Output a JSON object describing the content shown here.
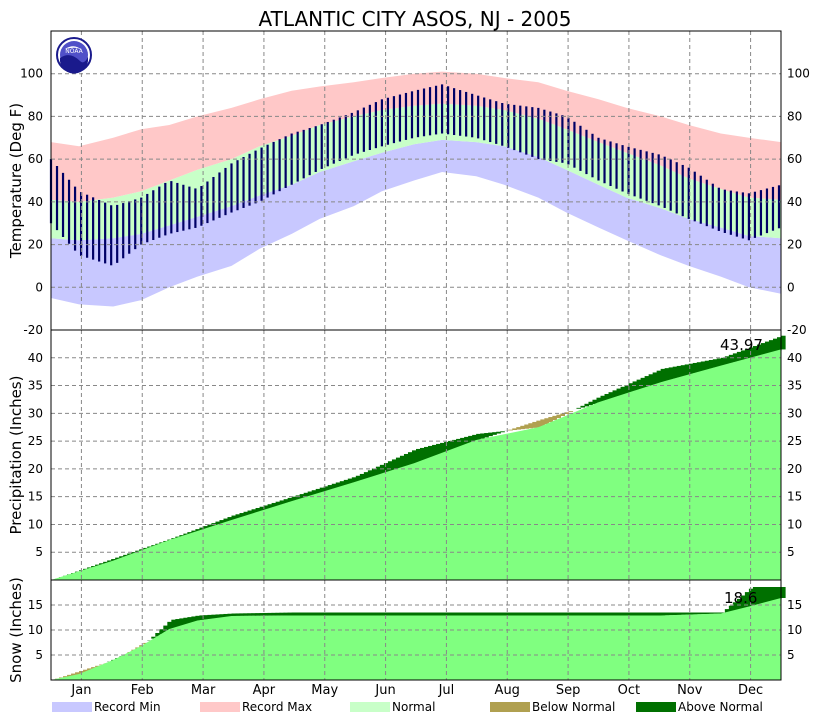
{
  "title": "ATLANTIC CITY  ASOS, NJ - 2005",
  "logo_text": "NOAA",
  "colors": {
    "record_min": "#c8c8ff",
    "record_max": "#ffc8c8",
    "normal": "#c8ffc8",
    "observed": "#000066",
    "below_normal": "#b0a050",
    "above_normal": "#007000",
    "normal_fill": "#80ff80",
    "grid": "#888888"
  },
  "legend": [
    {
      "label": "Record Min",
      "color_key": "record_min"
    },
    {
      "label": "Record Max",
      "color_key": "record_max"
    },
    {
      "label": "Normal",
      "color_key": "normal"
    },
    {
      "label": "Below Normal",
      "color_key": "below_normal"
    },
    {
      "label": "Above Normal",
      "color_key": "above_normal"
    }
  ],
  "chart_data": [
    {
      "type": "area",
      "panel": "temperature",
      "ylabel": "Temperature (Deg F)",
      "ylim": [
        -20,
        120
      ],
      "yticks": [
        -20,
        0,
        20,
        40,
        60,
        80,
        100
      ],
      "grid": true,
      "months": [
        "Jan",
        "Feb",
        "Mar",
        "Apr",
        "May",
        "Jun",
        "Jul",
        "Aug",
        "Sep",
        "Oct",
        "Nov",
        "Dec"
      ],
      "x_day_of_year": [
        1,
        15,
        32,
        46,
        60,
        74,
        91,
        105,
        121,
        135,
        152,
        166,
        182,
        196,
        213,
        227,
        244,
        258,
        274,
        288,
        305,
        319,
        335,
        349,
        365
      ],
      "record_max": [
        68,
        66,
        70,
        74,
        76,
        80,
        84,
        88,
        92,
        94,
        96,
        98,
        100,
        101,
        100,
        98,
        96,
        92,
        88,
        84,
        80,
        76,
        72,
        70,
        68
      ],
      "normal_high": [
        41,
        40,
        42,
        45,
        50,
        55,
        60,
        66,
        71,
        76,
        80,
        83,
        85,
        86,
        85,
        83,
        79,
        74,
        68,
        63,
        57,
        51,
        46,
        42,
        41
      ],
      "normal_low": [
        23,
        22,
        23,
        25,
        29,
        33,
        38,
        43,
        48,
        54,
        59,
        63,
        67,
        69,
        68,
        66,
        61,
        55,
        48,
        42,
        37,
        32,
        28,
        24,
        23
      ],
      "record_min": [
        -5,
        -8,
        -9,
        -6,
        0,
        5,
        10,
        18,
        25,
        32,
        38,
        45,
        50,
        54,
        52,
        48,
        42,
        35,
        28,
        22,
        15,
        10,
        5,
        0,
        -3
      ],
      "observed_high": [
        60,
        45,
        38,
        42,
        50,
        46,
        58,
        65,
        72,
        76,
        82,
        88,
        92,
        95,
        90,
        86,
        84,
        80,
        70,
        66,
        62,
        56,
        46,
        44,
        48
      ],
      "observed_low": [
        30,
        15,
        10,
        20,
        25,
        28,
        35,
        40,
        48,
        55,
        62,
        66,
        70,
        72,
        70,
        66,
        60,
        58,
        50,
        44,
        38,
        32,
        26,
        22,
        28
      ]
    },
    {
      "type": "area",
      "panel": "precipitation",
      "ylabel": "Precipitation (Inches)",
      "ylim": [
        0,
        45
      ],
      "yticks": [
        5,
        10,
        15,
        20,
        25,
        30,
        35,
        40
      ],
      "grid": true,
      "annotation": "43.97",
      "x_day_of_year": [
        1,
        32,
        60,
        91,
        121,
        152,
        182,
        213,
        244,
        274,
        305,
        335,
        365
      ],
      "normal_cumulative": [
        0,
        3.5,
        7.2,
        10.8,
        14.2,
        17.6,
        21.0,
        25.2,
        28.8,
        32.0,
        35.6,
        38.6,
        41.5
      ],
      "observed_cumulative": [
        0,
        3.9,
        7.4,
        11.6,
        15.0,
        18.6,
        23.5,
        26.3,
        27.5,
        33.0,
        38.0,
        40.0,
        43.97
      ]
    },
    {
      "type": "area",
      "panel": "snow",
      "ylabel": "Snow (Inches)",
      "ylim": [
        0,
        20
      ],
      "yticks": [
        5,
        10,
        15
      ],
      "grid": true,
      "annotation": "18.6",
      "x_day_of_year": [
        1,
        15,
        32,
        46,
        60,
        74,
        91,
        121,
        152,
        182,
        213,
        244,
        274,
        305,
        335,
        350,
        365
      ],
      "normal_cumulative": [
        0,
        1.8,
        4.0,
        7.2,
        10.2,
        11.9,
        12.8,
        12.9,
        12.9,
        12.9,
        12.9,
        12.9,
        12.9,
        12.9,
        13.3,
        14.8,
        16.4
      ],
      "observed_cumulative": [
        0,
        1.2,
        4.2,
        6.8,
        12.0,
        12.9,
        13.3,
        13.5,
        13.5,
        13.5,
        13.5,
        13.5,
        13.5,
        13.5,
        13.5,
        18.6,
        18.6
      ]
    }
  ]
}
